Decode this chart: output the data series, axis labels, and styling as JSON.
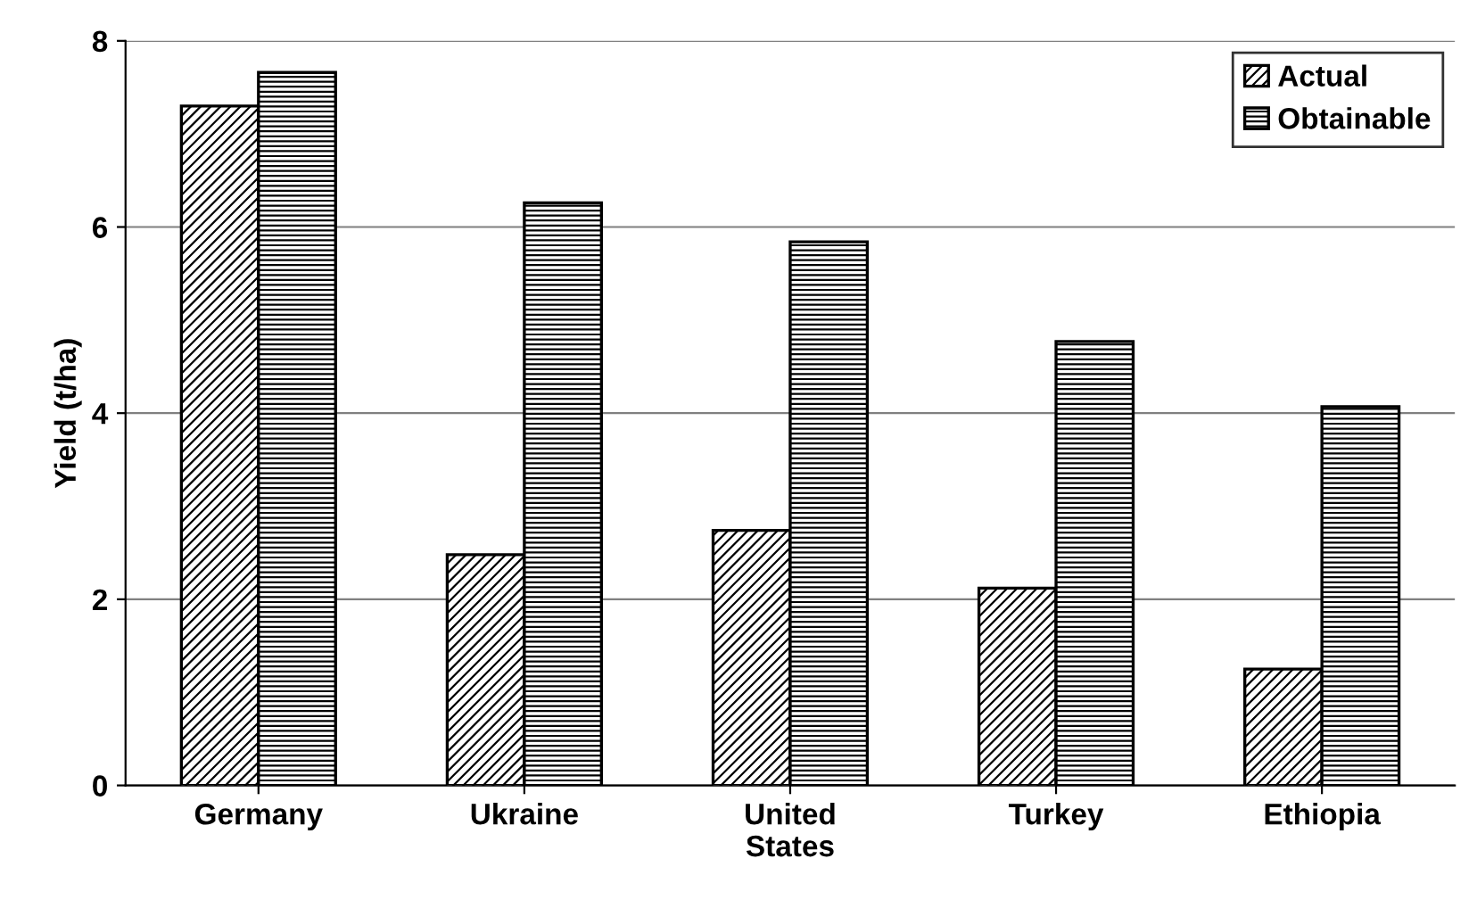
{
  "chart_data": {
    "type": "bar",
    "ylabel": "Yield (t/ha)",
    "categories": [
      "Germany",
      "Ukraine",
      "United States",
      "Turkey",
      "Ethiopia"
    ],
    "series": [
      {
        "name": "Actual",
        "color": "#000000",
        "values": [
          7.3,
          2.48,
          2.74,
          2.12,
          1.25
        ]
      },
      {
        "name": "Obtainable",
        "color": "#000000",
        "values": [
          7.66,
          6.26,
          5.84,
          4.77,
          4.07
        ]
      }
    ],
    "ylim": [
      0,
      8
    ],
    "yticks": [
      0,
      2,
      4,
      6,
      8
    ],
    "grid": "y",
    "legend": "top right"
  }
}
